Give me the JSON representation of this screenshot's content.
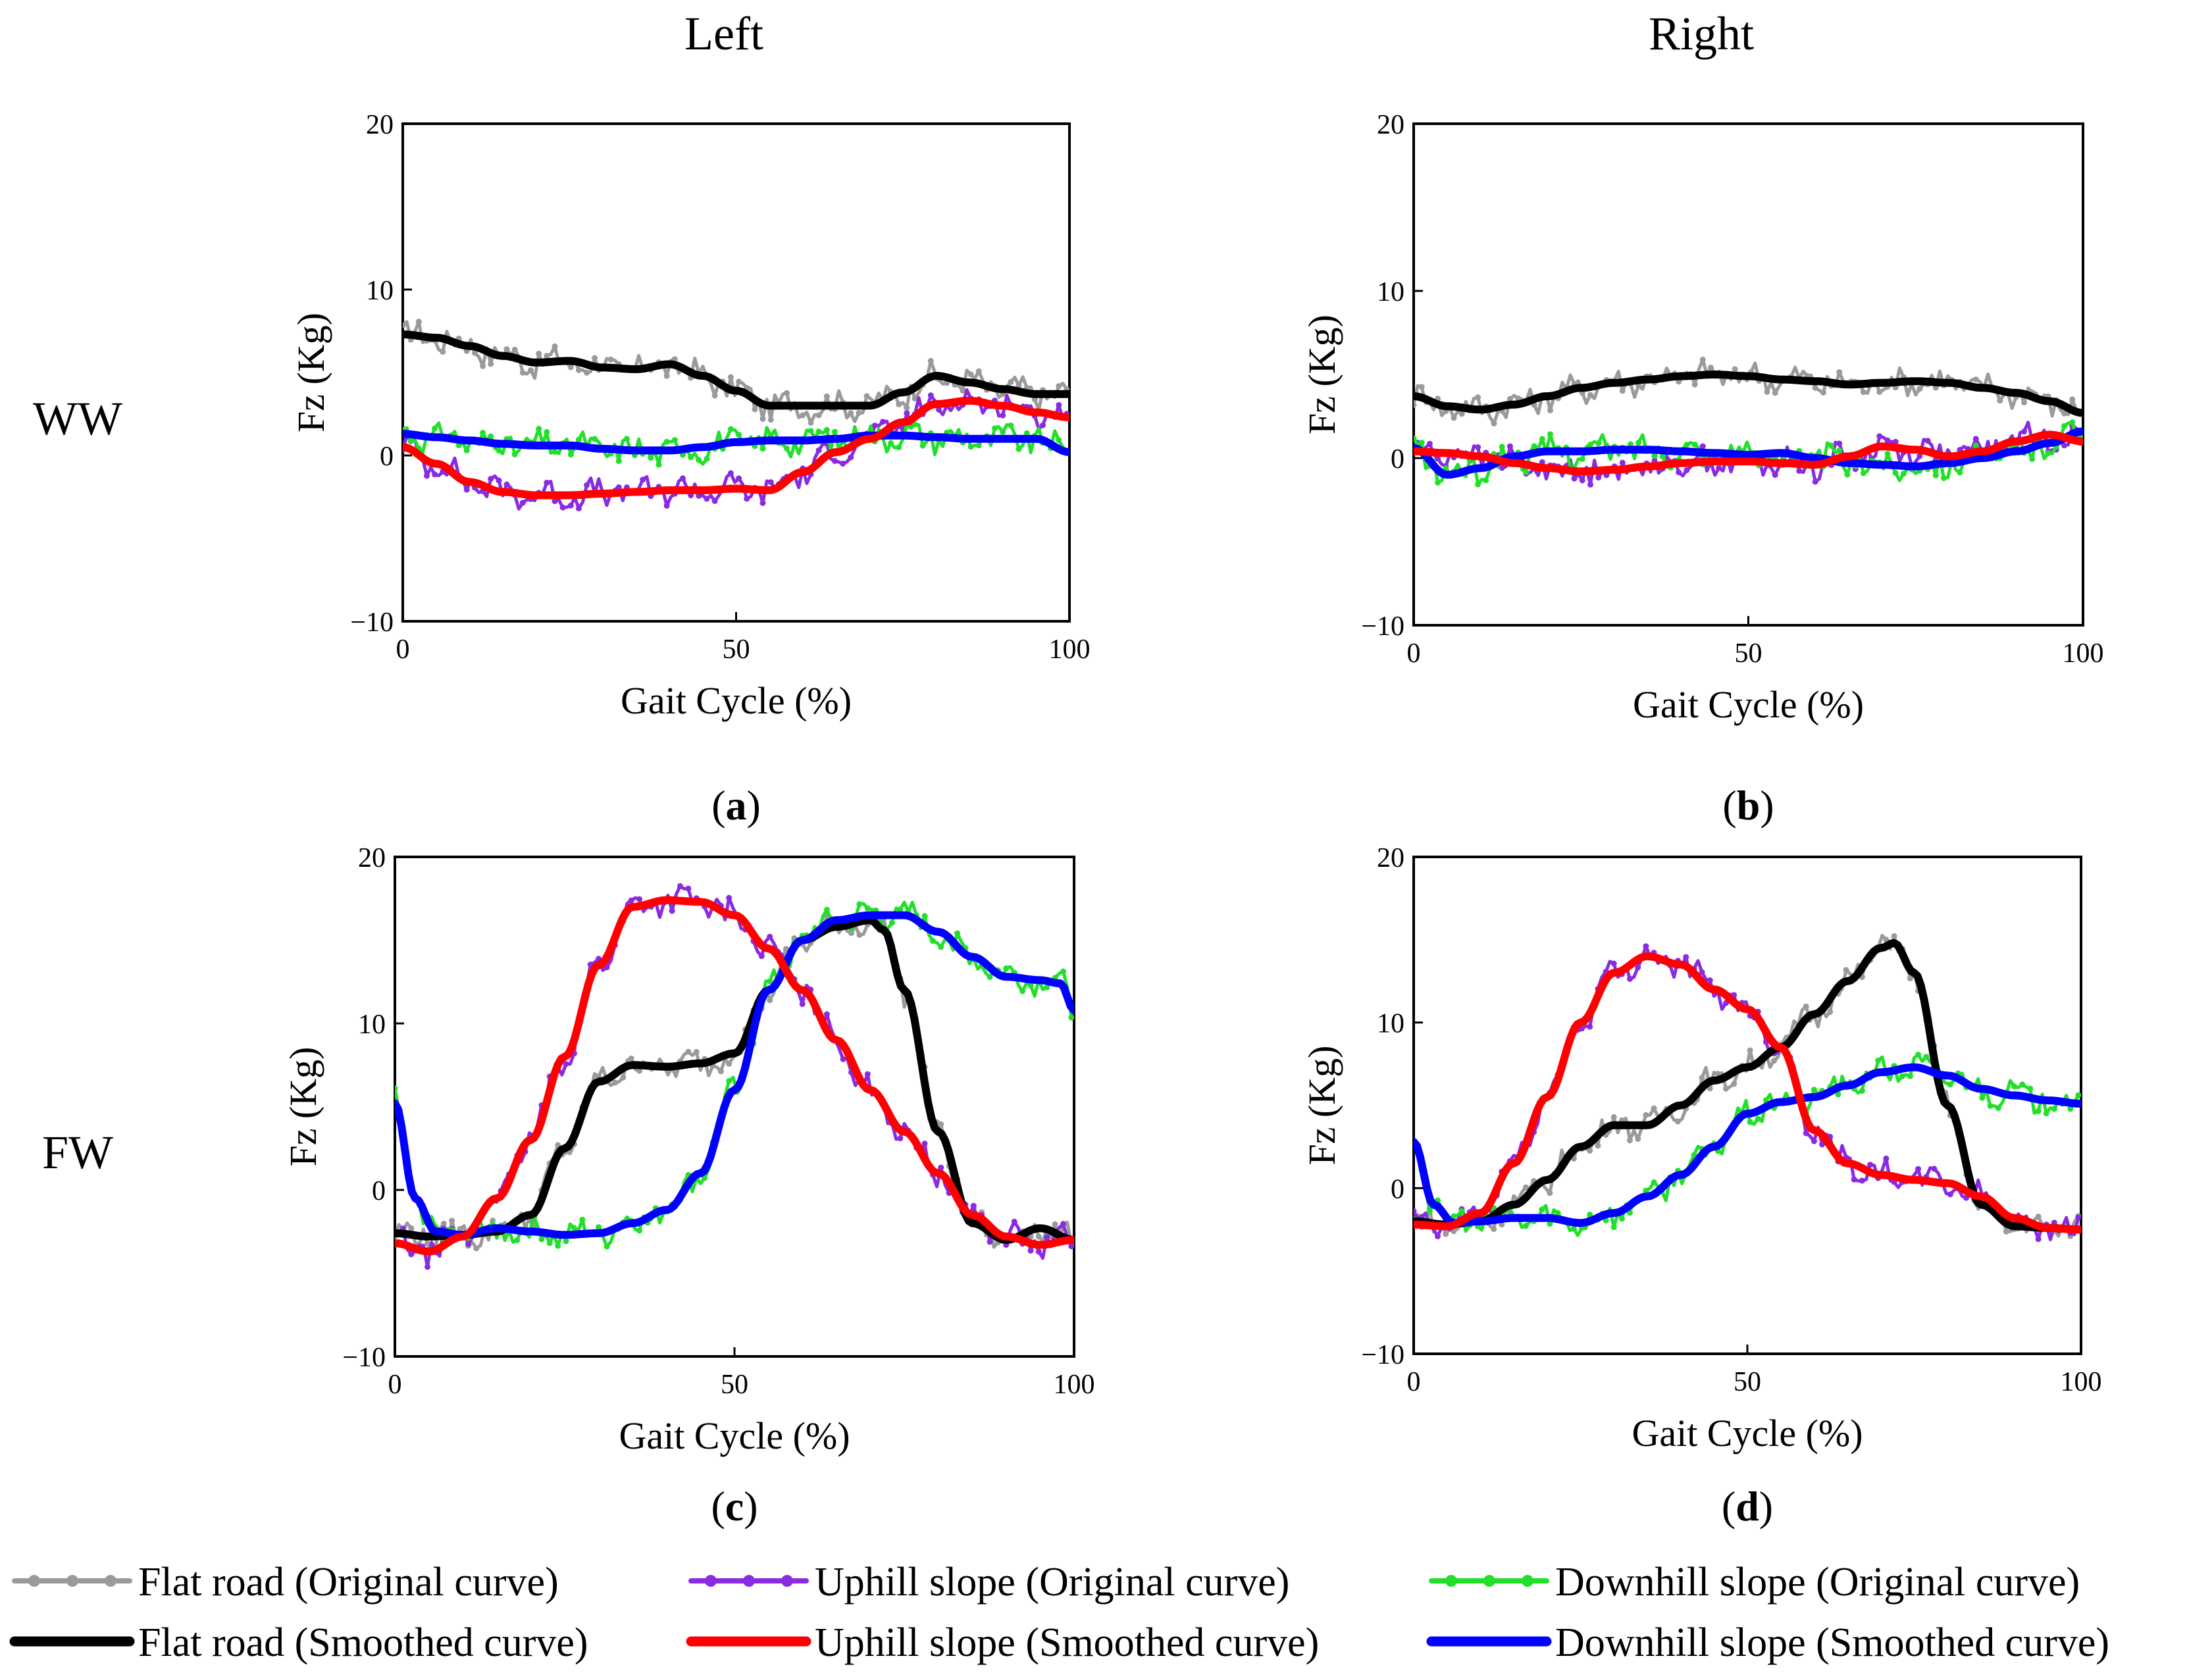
{
  "column_headers": [
    "Left",
    "Right"
  ],
  "row_labels": [
    "WW",
    "FW"
  ],
  "series_styles": [
    {
      "key": "flat_orig",
      "color": "#9a9a9a",
      "width": 5,
      "markers": true
    },
    {
      "key": "up_orig",
      "color": "#8a2be2",
      "width": 5,
      "markers": true
    },
    {
      "key": "down_orig",
      "color": "#22e02a",
      "width": 5,
      "markers": true
    },
    {
      "key": "flat_smooth",
      "color": "#000000",
      "width": 12,
      "markers": false
    },
    {
      "key": "up_smooth",
      "color": "#ff0000",
      "width": 12,
      "markers": false
    },
    {
      "key": "down_smooth",
      "color": "#0000ff",
      "width": 12,
      "markers": false
    }
  ],
  "legend": [
    {
      "key": "flat_orig",
      "label": "Flat road (Original curve)"
    },
    {
      "key": "up_orig",
      "label": "Uphill slope (Original curve)"
    },
    {
      "key": "down_orig",
      "label": "Downhill slope (Original curve)"
    },
    {
      "key": "flat_smooth",
      "label": "Flat road (Smoothed curve)"
    },
    {
      "key": "up_smooth",
      "label": "Uphill slope (Smoothed curve)"
    },
    {
      "key": "down_smooth",
      "label": "Downhill slope (Smoothed curve)"
    }
  ],
  "chart_data": [
    {
      "id": "a",
      "caption_letter": "a",
      "type": "line",
      "xlabel": "Gait Cycle (%)",
      "ylabel": "Fz (Kg)",
      "xlim": [
        0,
        100
      ],
      "ylim": [
        -10,
        20
      ],
      "xticks": [
        0,
        50,
        100
      ],
      "yticks": [
        -10,
        0,
        10,
        20
      ],
      "series": [
        {
          "key": "flat_smooth",
          "name": "Flat road (Smoothed curve)",
          "x": [
            0,
            5,
            10,
            15,
            20,
            25,
            30,
            35,
            40,
            45,
            50,
            55,
            60,
            65,
            70,
            75,
            80,
            85,
            90,
            95,
            100
          ],
          "y": [
            7.3,
            7.1,
            6.6,
            6.0,
            5.6,
            5.7,
            5.3,
            5.2,
            5.5,
            4.8,
            3.9,
            3.0,
            3.0,
            3.0,
            3.0,
            3.8,
            4.8,
            4.4,
            4.0,
            3.7,
            3.7
          ]
        },
        {
          "key": "up_smooth",
          "name": "Uphill slope (Smoothed curve)",
          "x": [
            0,
            5,
            10,
            15,
            20,
            25,
            30,
            35,
            40,
            45,
            50,
            55,
            60,
            65,
            70,
            75,
            80,
            85,
            90,
            95,
            100
          ],
          "y": [
            0.5,
            -0.5,
            -1.6,
            -2.2,
            -2.4,
            -2.4,
            -2.3,
            -2.2,
            -2.1,
            -2.1,
            -2.0,
            -2.1,
            -1.0,
            0.2,
            1.0,
            2.0,
            3.1,
            3.3,
            3.0,
            2.6,
            2.3
          ]
        },
        {
          "key": "down_smooth",
          "name": "Downhill slope (Smoothed curve)",
          "x": [
            0,
            5,
            10,
            15,
            20,
            25,
            30,
            35,
            40,
            45,
            50,
            55,
            60,
            65,
            70,
            75,
            80,
            85,
            90,
            95,
            100
          ],
          "y": [
            1.3,
            1.1,
            0.9,
            0.7,
            0.6,
            0.6,
            0.4,
            0.3,
            0.3,
            0.5,
            0.8,
            0.9,
            0.9,
            1.0,
            1.2,
            1.2,
            1.1,
            1.0,
            1.0,
            1.0,
            0.2
          ]
        }
      ]
    },
    {
      "id": "b",
      "caption_letter": "b",
      "type": "line",
      "xlabel": "Gait Cycle (%)",
      "ylabel": "Fz (Kg)",
      "xlim": [
        0,
        100
      ],
      "ylim": [
        -10,
        20
      ],
      "xticks": [
        0,
        50,
        100
      ],
      "yticks": [
        -10,
        0,
        10,
        20
      ],
      "series": [
        {
          "key": "flat_smooth",
          "name": "Flat road (Smoothed curve)",
          "x": [
            0,
            5,
            10,
            15,
            20,
            25,
            30,
            35,
            40,
            45,
            50,
            55,
            60,
            65,
            70,
            75,
            80,
            85,
            90,
            95,
            100
          ],
          "y": [
            3.7,
            3.1,
            2.9,
            3.2,
            3.7,
            4.2,
            4.5,
            4.7,
            4.9,
            5.0,
            4.9,
            4.7,
            4.6,
            4.4,
            4.5,
            4.6,
            4.5,
            4.2,
            3.9,
            3.4,
            2.7
          ]
        },
        {
          "key": "up_smooth",
          "name": "Uphill slope (Smoothed curve)",
          "x": [
            0,
            5,
            10,
            15,
            20,
            25,
            30,
            35,
            40,
            45,
            50,
            55,
            60,
            65,
            70,
            75,
            80,
            85,
            90,
            95,
            100
          ],
          "y": [
            0.4,
            0.3,
            0.1,
            -0.3,
            -0.6,
            -0.8,
            -0.7,
            -0.5,
            -0.3,
            -0.2,
            -0.2,
            -0.3,
            -0.4,
            0.1,
            0.7,
            0.5,
            0.1,
            0.4,
            1.0,
            1.4,
            1.0
          ]
        },
        {
          "key": "down_smooth",
          "name": "Downhill slope (Smoothed curve)",
          "x": [
            0,
            5,
            10,
            15,
            20,
            25,
            30,
            35,
            40,
            45,
            50,
            55,
            60,
            65,
            70,
            75,
            80,
            85,
            90,
            95,
            100
          ],
          "y": [
            0.6,
            -1.0,
            -0.6,
            0.1,
            0.4,
            0.4,
            0.5,
            0.5,
            0.4,
            0.3,
            0.2,
            0.3,
            0.0,
            -0.3,
            -0.4,
            -0.5,
            -0.3,
            0.0,
            0.4,
            0.9,
            1.6
          ]
        }
      ]
    },
    {
      "id": "c",
      "caption_letter": "c",
      "type": "line",
      "xlabel": "Gait Cycle (%)",
      "ylabel": "Fz (Kg)",
      "xlim": [
        0,
        100
      ],
      "ylim": [
        -10,
        20
      ],
      "xticks": [
        0,
        50,
        100
      ],
      "yticks": [
        -10,
        0,
        10,
        20
      ],
      "series": [
        {
          "key": "flat_smooth",
          "name": "Flat road (Smoothed curve)",
          "x": [
            0,
            5,
            10,
            15,
            20,
            25,
            30,
            35,
            40,
            45,
            50,
            55,
            60,
            65,
            70,
            72,
            75,
            80,
            85,
            90,
            95,
            100
          ],
          "y": [
            -2.6,
            -2.8,
            -2.7,
            -2.5,
            -1.5,
            2.5,
            6.5,
            7.5,
            7.4,
            7.6,
            8.2,
            12.0,
            15.0,
            15.8,
            16.2,
            15.6,
            12.0,
            3.5,
            -2.0,
            -3.0,
            -2.3,
            -3.0
          ]
        },
        {
          "key": "up_smooth",
          "name": "Uphill slope (Smoothed curve)",
          "x": [
            0,
            5,
            10,
            15,
            20,
            25,
            30,
            35,
            40,
            45,
            50,
            55,
            60,
            65,
            70,
            75,
            80,
            85,
            90,
            95,
            100
          ],
          "y": [
            -3.2,
            -3.7,
            -2.8,
            -0.5,
            3.0,
            8.0,
            13.5,
            17.0,
            17.4,
            17.3,
            16.5,
            14.5,
            12.0,
            9.0,
            6.0,
            3.5,
            1.0,
            -1.5,
            -2.8,
            -3.3,
            -3.0
          ]
        },
        {
          "key": "down_smooth",
          "name": "Downhill slope (Smoothed curve)",
          "x": [
            0,
            3,
            6,
            10,
            15,
            20,
            25,
            30,
            35,
            40,
            45,
            50,
            55,
            60,
            65,
            70,
            75,
            80,
            85,
            90,
            95,
            98,
            100
          ],
          "y": [
            5.2,
            -0.5,
            -2.5,
            -2.7,
            -2.3,
            -2.5,
            -2.7,
            -2.6,
            -2.0,
            -1.2,
            1.0,
            6.0,
            12.0,
            15.0,
            16.2,
            16.5,
            16.5,
            15.5,
            14.0,
            12.8,
            12.6,
            12.4,
            10.8
          ]
        }
      ]
    },
    {
      "id": "d",
      "caption_letter": "d",
      "type": "line",
      "xlabel": "Gait Cycle (%)",
      "ylabel": "Fz (Kg)",
      "xlim": [
        0,
        100
      ],
      "ylim": [
        -10,
        20
      ],
      "xticks": [
        0,
        50,
        100
      ],
      "yticks": [
        -10,
        0,
        10,
        20
      ],
      "series": [
        {
          "key": "flat_smooth",
          "name": "Flat road (Smoothed curve)",
          "x": [
            0,
            5,
            10,
            15,
            20,
            25,
            30,
            35,
            40,
            45,
            50,
            55,
            60,
            65,
            70,
            72,
            75,
            80,
            85,
            90,
            95,
            100
          ],
          "y": [
            -2.0,
            -2.2,
            -2.0,
            -1.0,
            0.5,
            2.5,
            3.8,
            3.8,
            5.0,
            6.5,
            7.3,
            8.5,
            10.5,
            12.5,
            14.5,
            14.8,
            13.0,
            5.0,
            -1.0,
            -2.3,
            -2.4,
            -2.5
          ]
        },
        {
          "key": "up_smooth",
          "name": "Uphill slope (Smoothed curve)",
          "x": [
            0,
            5,
            10,
            15,
            20,
            25,
            30,
            35,
            40,
            45,
            50,
            55,
            60,
            65,
            70,
            75,
            80,
            85,
            90,
            95,
            100
          ],
          "y": [
            -2.2,
            -2.3,
            -1.5,
            1.5,
            5.5,
            10.0,
            13.0,
            14.0,
            13.5,
            12.0,
            10.8,
            8.5,
            3.5,
            1.5,
            0.8,
            0.5,
            0.3,
            -0.5,
            -1.8,
            -2.4,
            -2.5
          ]
        },
        {
          "key": "down_smooth",
          "name": "Downhill slope (Smoothed curve)",
          "x": [
            0,
            3,
            6,
            10,
            15,
            20,
            25,
            30,
            35,
            40,
            45,
            50,
            55,
            60,
            65,
            70,
            75,
            80,
            85,
            90,
            95,
            100
          ],
          "y": [
            2.8,
            -1.0,
            -2.1,
            -2.0,
            -1.8,
            -1.8,
            -2.1,
            -1.5,
            -0.5,
            0.8,
            2.5,
            4.5,
            5.2,
            5.5,
            6.2,
            7.0,
            7.3,
            6.8,
            6.0,
            5.6,
            5.3,
            5.1
          ]
        }
      ]
    }
  ]
}
